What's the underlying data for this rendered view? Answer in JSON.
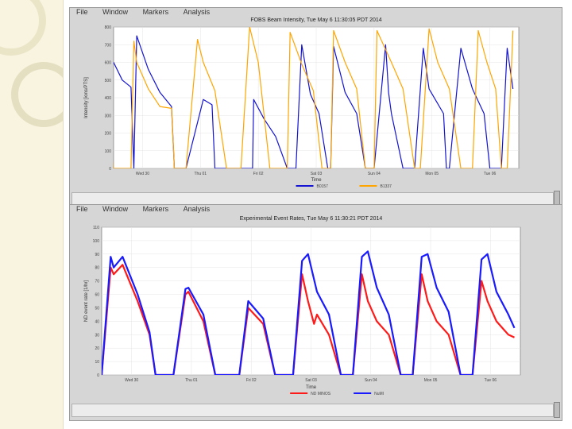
{
  "menu": {
    "file": "File",
    "window": "Window",
    "markers": "Markers",
    "analysis": "Analysis"
  },
  "chart_data": [
    {
      "type": "line",
      "title": "FOBS Beam Intensity, Tue May 6 11:30:05 PDT 2014",
      "xlabel": "Time",
      "ylabel": "Intensity [ions/PTS]",
      "ylim": [
        0,
        800
      ],
      "yticks": [
        0,
        100,
        200,
        300,
        400,
        500,
        600,
        700,
        800
      ],
      "ytick_labels": [
        "0",
        "100",
        "200",
        "300",
        "400",
        "500",
        "600",
        "700",
        "800"
      ],
      "xlim": [
        0,
        7
      ],
      "xticks": [
        0.5,
        1.5,
        2.5,
        3.5,
        4.5,
        5.5,
        6.5
      ],
      "xtick_labels": [
        "Wed 30",
        "Thu 01",
        "Fri 02",
        "Sat 03",
        "Sun 04",
        "Mon 05",
        "Tue 06"
      ],
      "colors": {
        "orange": "#ffa500",
        "navy": "#1414d2"
      },
      "series": [
        {
          "name": "B0157",
          "color": "#1414d2",
          "x": [
            -0.3,
            0,
            0.15,
            0.3,
            0.35,
            0.4,
            0.6,
            0.8,
            1.0,
            1.05,
            1.25,
            1.55,
            1.7,
            1.75,
            1.9,
            2.0,
            2.4,
            2.42,
            2.6,
            2.8,
            3.0,
            3.15,
            3.25,
            3.4,
            3.55,
            3.7,
            3.75,
            3.8,
            4.0,
            4.2,
            4.35,
            4.5,
            4.7,
            4.75,
            4.8,
            5.0,
            5.2,
            5.35,
            5.45,
            5.7,
            5.75,
            5.8,
            6.0,
            6.2,
            6.4,
            6.5,
            6.7,
            6.8,
            6.9
          ],
          "y": [
            640,
            600,
            500,
            460,
            0,
            750,
            560,
            430,
            350,
            0,
            0,
            390,
            360,
            0,
            0,
            0,
            0,
            390,
            280,
            180,
            0,
            0,
            700,
            420,
            310,
            0,
            0,
            690,
            430,
            310,
            0,
            0,
            700,
            430,
            310,
            0,
            0,
            680,
            450,
            310,
            0,
            0,
            680,
            450,
            310,
            0,
            0,
            680,
            450
          ]
        },
        {
          "name": "B1337",
          "color": "#ffa500",
          "x": [
            -0.3,
            -0.1,
            0,
            0.3,
            0.35,
            0.4,
            0.6,
            0.8,
            1.0,
            1.05,
            1.25,
            1.45,
            1.55,
            1.75,
            1.95,
            2.2,
            2.35,
            2.5,
            2.55,
            2.7,
            2.9,
            3.0,
            3.05,
            3.25,
            3.45,
            3.6,
            3.7,
            3.75,
            3.8,
            4.0,
            4.2,
            4.35,
            4.5,
            4.55,
            4.8,
            5.0,
            5.2,
            5.3,
            5.45,
            5.6,
            5.8,
            6.0,
            6.2,
            6.3,
            6.45,
            6.6,
            6.7,
            6.8,
            6.9
          ],
          "y": [
            600,
            560,
            0,
            0,
            720,
            600,
            450,
            350,
            340,
            0,
            0,
            730,
            600,
            440,
            0,
            0,
            800,
            600,
            450,
            0,
            0,
            0,
            770,
            590,
            440,
            0,
            0,
            0,
            780,
            600,
            450,
            0,
            0,
            780,
            600,
            450,
            0,
            0,
            790,
            600,
            450,
            0,
            0,
            780,
            600,
            450,
            0,
            0,
            780
          ]
        }
      ]
    },
    {
      "type": "line",
      "title": "Experimental Event Rates, Tue May 6 11:30:21 PDT 2014",
      "xlabel": "Time",
      "ylabel": "ND event rate [1/hr]",
      "ylim": [
        0,
        110
      ],
      "yticks": [
        0,
        10,
        20,
        30,
        40,
        50,
        60,
        70,
        80,
        90,
        100,
        110
      ],
      "ytick_labels": [
        "0",
        "10",
        "20",
        "30",
        "40",
        "50",
        "60",
        "70",
        "80",
        "90",
        "100",
        "110"
      ],
      "xlim": [
        0,
        7
      ],
      "xticks": [
        0.5,
        1.5,
        2.5,
        3.5,
        4.5,
        5.5,
        6.5
      ],
      "xtick_labels": [
        "Wed 30",
        "Thu 01",
        "Fri 02",
        "Sat 03",
        "Sun 04",
        "Mon 05",
        "Tue 06"
      ],
      "colors": {
        "red": "#ff1a1a",
        "blue": "#1a1aff"
      },
      "series": [
        {
          "name": "ND MINOS",
          "color": "#ff1a1a",
          "x": [
            -0.4,
            -0.2,
            0,
            0.15,
            0.2,
            0.35,
            0.6,
            0.8,
            0.9,
            1.2,
            1.4,
            1.45,
            1.7,
            1.9,
            2.3,
            2.45,
            2.7,
            2.9,
            3.2,
            3.35,
            3.45,
            3.55,
            3.6,
            3.8,
            4.0,
            4.2,
            4.35,
            4.45,
            4.6,
            4.8,
            5.0,
            5.2,
            5.35,
            5.45,
            5.6,
            5.8,
            6.0,
            6.2,
            6.35,
            6.45,
            6.6,
            6.8,
            6.9
          ],
          "y": [
            45,
            40,
            0,
            80,
            75,
            82,
            55,
            30,
            0,
            0,
            60,
            62,
            40,
            0,
            0,
            50,
            38,
            0,
            0,
            75,
            55,
            38,
            45,
            30,
            0,
            0,
            75,
            55,
            40,
            30,
            0,
            0,
            75,
            55,
            40,
            30,
            0,
            0,
            70,
            55,
            40,
            30,
            28
          ]
        },
        {
          "name": "NuMI",
          "color": "#1a1aff",
          "x": [
            -0.4,
            -0.2,
            0,
            0.15,
            0.2,
            0.35,
            0.6,
            0.8,
            0.9,
            1.2,
            1.4,
            1.45,
            1.7,
            1.9,
            2.3,
            2.45,
            2.7,
            2.9,
            3.2,
            3.35,
            3.45,
            3.6,
            3.8,
            4.0,
            4.2,
            4.35,
            4.45,
            4.6,
            4.8,
            5.0,
            5.2,
            5.35,
            5.45,
            5.6,
            5.8,
            6.0,
            6.2,
            6.35,
            6.45,
            6.6,
            6.8,
            6.9
          ],
          "y": [
            50,
            45,
            0,
            88,
            80,
            88,
            60,
            32,
            0,
            0,
            64,
            65,
            45,
            0,
            0,
            55,
            42,
            0,
            0,
            85,
            90,
            62,
            45,
            0,
            0,
            88,
            92,
            65,
            45,
            0,
            0,
            88,
            90,
            65,
            47,
            0,
            0,
            86,
            90,
            62,
            45,
            35
          ]
        }
      ]
    }
  ]
}
